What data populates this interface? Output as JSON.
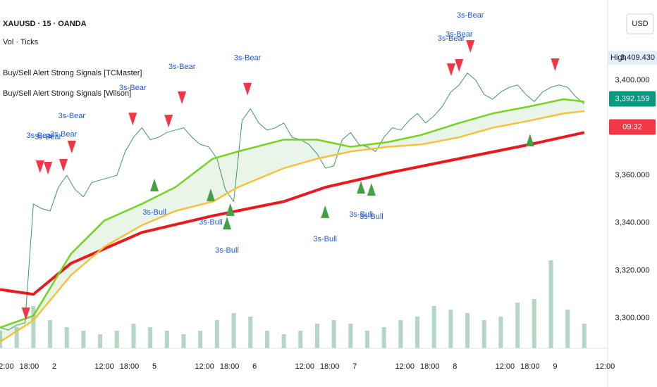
{
  "chart_data": [
    {
      "type": "line",
      "title": "XAUUSD · 15 · OANDA",
      "indicators": [
        "Vol · Ticks",
        "Buy/Sell Alert Strong Signals [TCMaster]",
        "Buy/Sell Alert Strong Signals [Wilson]"
      ],
      "currency": "USD",
      "high_label": "High",
      "high": {
        "value": 3409.43,
        "label": "3,409.430"
      },
      "last_price": {
        "value": 3392.159,
        "label": "3,392.159"
      },
      "countdown": "09:32",
      "xlim": [
        0,
        145.6
      ],
      "xticks": [
        {
          "value": 1,
          "label": "12:00"
        },
        {
          "value": 7,
          "label": "18:00"
        },
        {
          "value": 13,
          "label": "2"
        },
        {
          "value": 25,
          "label": "12:00"
        },
        {
          "value": 31,
          "label": "18:00"
        },
        {
          "value": 37,
          "label": "5"
        },
        {
          "value": 49,
          "label": "12:00"
        },
        {
          "value": 55,
          "label": "18:00"
        },
        {
          "value": 61,
          "label": "6"
        },
        {
          "value": 73,
          "label": "12:00"
        },
        {
          "value": 79,
          "label": "18:00"
        },
        {
          "value": 85,
          "label": "7"
        },
        {
          "value": 97,
          "label": "12:00"
        },
        {
          "value": 103,
          "label": "18:00"
        },
        {
          "value": 109,
          "label": "8"
        },
        {
          "value": 121,
          "label": "12:00"
        },
        {
          "value": 127,
          "label": "18:00"
        },
        {
          "value": 133,
          "label": "9"
        },
        {
          "value": 145,
          "label": "12:00"
        }
      ],
      "ylim": [
        3287.3,
        3433.7
      ],
      "yticks": [
        {
          "value": 3300,
          "label": "3,300.000"
        },
        {
          "value": 3320,
          "label": "3,320.000"
        },
        {
          "value": 3340,
          "label": "3,340.000"
        },
        {
          "value": 3360,
          "label": "3,360.000"
        },
        {
          "value": 3400,
          "label": "3,400.000"
        }
      ],
      "band_fill": "rgba(76,175,80,0.13)",
      "series": [
        {
          "color": "#3c9a5f",
          "width": 1,
          "x": [
            0,
            2,
            4,
            6,
            8,
            10,
            12,
            14,
            16,
            18,
            20,
            22,
            24,
            26,
            28,
            30,
            32,
            34,
            36,
            38,
            40,
            42,
            44,
            46,
            48,
            50,
            52,
            54,
            56,
            58,
            60,
            62,
            64,
            66,
            68,
            70,
            72,
            74,
            76,
            78,
            80,
            82,
            84,
            86,
            88,
            90,
            92,
            94,
            96,
            98,
            100,
            102,
            104,
            106,
            108,
            110,
            112,
            114,
            116,
            118,
            120,
            122,
            124,
            126,
            128,
            130,
            132,
            134,
            136,
            138,
            140
          ],
          "values": [
            3296,
            3295,
            3297,
            3298,
            3348,
            3346,
            3345,
            3355,
            3360,
            3354,
            3351,
            3357,
            3358,
            3359,
            3360,
            3370,
            3376,
            3380,
            3375,
            3376,
            3378,
            3379,
            3380,
            3376,
            3373,
            3372,
            3367,
            3354,
            3349,
            3383,
            3388,
            3382,
            3379,
            3380,
            3382,
            3376,
            3375,
            3373,
            3369,
            3363,
            3364,
            3375,
            3378,
            3373,
            3372,
            3370,
            3376,
            3380,
            3379,
            3383,
            3386,
            3382,
            3385,
            3389,
            3395,
            3398,
            3403,
            3400,
            3394,
            3392,
            3395,
            3397,
            3398,
            3394,
            3391,
            3395,
            3397,
            3398,
            3397,
            3393,
            3390
          ]
        },
        {
          "color": "#e8191f",
          "width": 4,
          "x": [
            0,
            8,
            17,
            34,
            51,
            68,
            78,
            93,
            110,
            127,
            140
          ],
          "values": [
            3312,
            3310,
            3323,
            3336,
            3343,
            3349,
            3355,
            3361,
            3367,
            3373,
            3378
          ]
        },
        {
          "color": "#76d41e",
          "width": 2.5,
          "x": [
            0,
            8,
            17,
            25,
            34,
            42,
            51,
            57,
            68,
            76,
            84,
            93,
            101,
            110,
            118,
            127,
            135,
            140
          ],
          "values": [
            3296,
            3301,
            3327,
            3341,
            3348,
            3355,
            3367,
            3370,
            3375,
            3375,
            3372,
            3374,
            3377,
            3382,
            3386,
            3389,
            3392,
            3391
          ]
        },
        {
          "color": "#f7c23a",
          "width": 2.5,
          "x": [
            0,
            8,
            17,
            25,
            34,
            42,
            51,
            57,
            68,
            76,
            84,
            93,
            101,
            110,
            118,
            127,
            135,
            140
          ],
          "values": [
            3290,
            3299,
            3318,
            3330,
            3339,
            3345,
            3349,
            3355,
            3363,
            3367,
            3370,
            3372,
            3373,
            3376,
            3380,
            3383,
            3386,
            3387
          ]
        }
      ],
      "bear_color": "#f23645",
      "bull_color": "#43a047",
      "label_color": "#2158d6",
      "signals": [
        {
          "kind": "bear",
          "label": "3s-Bear",
          "x": 9.6,
          "price": 3363.3
        },
        {
          "kind": "bear",
          "label": "3s-Bear",
          "x": 11.5,
          "price": 3362.7
        },
        {
          "kind": "bear",
          "label": "3s-Bear",
          "x": 15.2,
          "price": 3363.9
        },
        {
          "kind": "bear",
          "label": "3s-Bear",
          "x": 17.2,
          "price": 3371.6
        },
        {
          "kind": "bear",
          "label": "3s-Bear",
          "x": 31.8,
          "price": 3383.4
        },
        {
          "kind": "bear",
          "label": "3s-Bear",
          "x": 43.6,
          "price": 3392.3
        },
        {
          "kind": "bear",
          "label": "3s-Bear",
          "x": 59.3,
          "price": 3395.9
        },
        {
          "kind": "bear",
          "label": "3s-Bear",
          "x": 108.1,
          "price": 3404.1
        },
        {
          "kind": "bear",
          "label": "3s-Bear",
          "x": 110,
          "price": 3405.9
        },
        {
          "kind": "bear",
          "label": "3s-Bear",
          "x": 112.7,
          "price": 3413.9
        },
        {
          "kind": "bear",
          "x": 6.2,
          "price": 3301.5
        },
        {
          "kind": "bear",
          "x": 40.4,
          "price": 3382.5
        },
        {
          "kind": "bear",
          "x": 133,
          "price": 3406.2
        },
        {
          "kind": "bull",
          "label": "3s-Bull",
          "x": 37,
          "price": 3356.2
        },
        {
          "kind": "bull",
          "label": "3s-Bull",
          "x": 50.5,
          "price": 3352.1
        },
        {
          "kind": "bull",
          "label": "3s-Bull",
          "x": 54.4,
          "price": 3340.2
        },
        {
          "kind": "bull",
          "label": "3s-Bull",
          "x": 77.9,
          "price": 3345
        },
        {
          "kind": "bull",
          "label": "3s-Bull",
          "x": 86.5,
          "price": 3355.3
        },
        {
          "kind": "bull",
          "label": "3s-Bull",
          "x": 89,
          "price": 3354.4
        },
        {
          "kind": "bull",
          "x": 55.2,
          "price": 3345.9
        },
        {
          "kind": "bull",
          "x": 127,
          "price": 3375.1
        }
      ]
    },
    {
      "type": "bar",
      "color": "rgba(120,180,150,0.55)",
      "xlim": [
        0,
        145.6
      ],
      "ylim": [
        0,
        130
      ],
      "x": [
        0,
        4,
        8,
        12,
        16,
        20,
        24,
        28,
        32,
        36,
        40,
        44,
        48,
        52,
        56,
        60,
        64,
        68,
        72,
        76,
        80,
        84,
        88,
        92,
        96,
        100,
        104,
        108,
        112,
        116,
        120,
        124,
        128,
        132,
        136,
        140
      ],
      "values": [
        25,
        30,
        60,
        40,
        30,
        25,
        20,
        25,
        35,
        30,
        25,
        20,
        25,
        40,
        50,
        45,
        25,
        20,
        25,
        35,
        40,
        35,
        25,
        30,
        40,
        45,
        60,
        55,
        50,
        40,
        45,
        65,
        70,
        125,
        55,
        35
      ]
    }
  ]
}
